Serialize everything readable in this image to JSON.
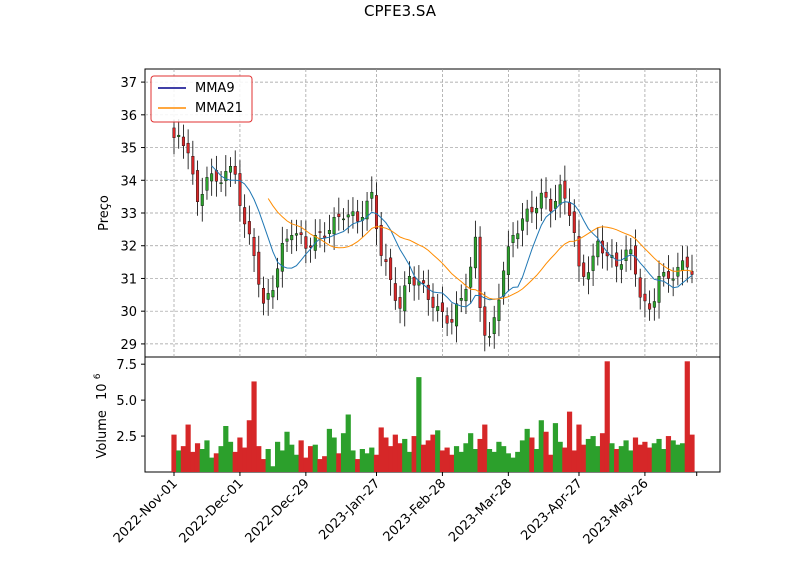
{
  "chart_data": {
    "type": "candlestick",
    "title": "CPFE3.SA",
    "price_axis": {
      "label": "Preço",
      "ylim": [
        28.6,
        37.4
      ],
      "ticks": [
        "29",
        "30",
        "31",
        "32",
        "33",
        "34",
        "35",
        "36",
        "37"
      ]
    },
    "volume_axis": {
      "label": "Volume",
      "exponent_label": "10",
      "exponent": "6",
      "ylim": [
        0,
        8.0
      ],
      "ticks": [
        "2.5",
        "5.0",
        "7.5"
      ]
    },
    "x_ticks": [
      "2022-Nov-01",
      "2022-Dec-01",
      "2022-Dec-29",
      "2023-Jan-27",
      "2023-Feb-28",
      "2023-Mar-28",
      "2023-Apr-27",
      "2023-May-26"
    ],
    "grid": true,
    "legend": {
      "placement": "upper-left",
      "entries": [
        {
          "label": "MMA9",
          "color": "#00008b"
        },
        {
          "label": "MMA21",
          "color": "#ff8c00"
        }
      ]
    },
    "colors": {
      "up": "#2ca02c",
      "down": "#d62728",
      "ma9": "#1f77b4",
      "ma21": "#ff8c00"
    },
    "close_anchors": [
      [
        0,
        35.3
      ],
      [
        3,
        35.0
      ],
      [
        5,
        33.2
      ],
      [
        7,
        34.2
      ],
      [
        9,
        33.9
      ],
      [
        11,
        34.3
      ],
      [
        13,
        34.2
      ],
      [
        15,
        32.6
      ],
      [
        17,
        31.8
      ],
      [
        19,
        30.1
      ],
      [
        21,
        30.8
      ],
      [
        23,
        31.9
      ],
      [
        25,
        32.5
      ],
      [
        28,
        32.0
      ],
      [
        32,
        32.4
      ],
      [
        36,
        33.0
      ],
      [
        39,
        32.8
      ],
      [
        42,
        33.5
      ],
      [
        44,
        31.8
      ],
      [
        46,
        30.9
      ],
      [
        48,
        30.1
      ],
      [
        50,
        31.1
      ],
      [
        53,
        30.7
      ],
      [
        56,
        30.0
      ],
      [
        59,
        29.7
      ],
      [
        61,
        30.4
      ],
      [
        63,
        31.3
      ],
      [
        64,
        32.1
      ],
      [
        65,
        30.2
      ],
      [
        66,
        29.4
      ],
      [
        67,
        29.1
      ],
      [
        68,
        29.7
      ],
      [
        70,
        31.3
      ],
      [
        72,
        32.3
      ],
      [
        74,
        32.8
      ],
      [
        76,
        33.1
      ],
      [
        78,
        33.5
      ],
      [
        80,
        33.2
      ],
      [
        82,
        33.7
      ],
      [
        84,
        33.1
      ],
      [
        85,
        32.4
      ],
      [
        86,
        31.2
      ],
      [
        87,
        31.1
      ],
      [
        89,
        31.6
      ],
      [
        90,
        32.0
      ],
      [
        92,
        31.8
      ],
      [
        94,
        31.3
      ],
      [
        96,
        31.9
      ],
      [
        97,
        31.7
      ],
      [
        99,
        30.6
      ],
      [
        101,
        29.9
      ],
      [
        102,
        30.4
      ],
      [
        103,
        31.2
      ],
      [
        105,
        30.9
      ],
      [
        107,
        31.4
      ],
      [
        110,
        31.3
      ]
    ],
    "volume_pattern": [
      2.6,
      1.5,
      1.8,
      3.3,
      1.4,
      2.0,
      1.6,
      2.2,
      1.0,
      1.3,
      1.8,
      3.2,
      2.1,
      1.4,
      2.4,
      1.7,
      3.6,
      6.3,
      1.8,
      0.9,
      1.6,
      0.4,
      2.1,
      1.5,
      2.8,
      1.9,
      1.2,
      2.2,
      1.0,
      1.8,
      1.9,
      0.9,
      1.1,
      3.0,
      2.4,
      1.3,
      2.7,
      4.0,
      1.5,
      0.9,
      1.6,
      1.3,
      1.7,
      1.2,
      3.1,
      2.4,
      1.8,
      2.6,
      2.0,
      2.3,
      1.4,
      2.5,
      6.6,
      1.9,
      2.2,
      2.6,
      2.9,
      1.5,
      1.7,
      1.2,
      1.8,
      1.4,
      2.0,
      2.7,
      1.6,
      2.3,
      3.3,
      1.6,
      1.4,
      2.1,
      1.8,
      1.3,
      1.0,
      1.4,
      2.2,
      3.0,
      2.4,
      1.6,
      3.6,
      2.8,
      1.2,
      3.4,
      2.1,
      1.7,
      4.2,
      1.5,
      3.3,
      1.9,
      2.3,
      2.5,
      1.8,
      2.7,
      7.7,
      2.0,
      1.6,
      1.8,
      2.2,
      1.5,
      2.4,
      1.9,
      2.1,
      1.7,
      2.0,
      2.3,
      1.6,
      2.5,
      2.2,
      1.9,
      2.0,
      7.7
    ]
  }
}
